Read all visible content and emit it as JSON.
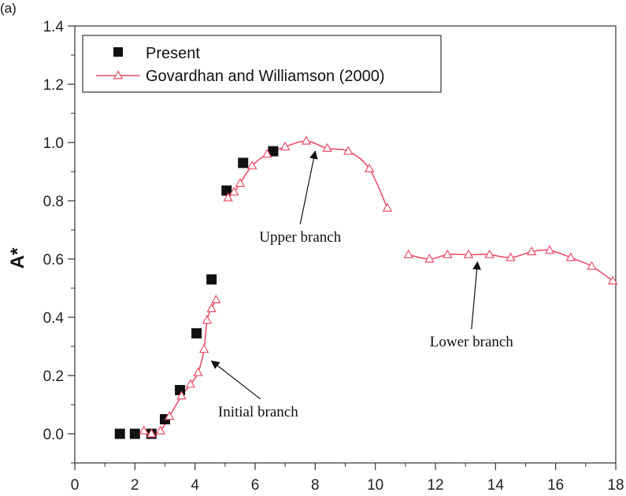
{
  "panel_label": "(a)",
  "chart_data": {
    "type": "scatter",
    "title": "",
    "xlabel": "",
    "ylabel": "A*",
    "xlim": [
      0,
      18
    ],
    "ylim": [
      -0.1,
      1.4
    ],
    "x_ticks": [
      0,
      2,
      4,
      6,
      8,
      10,
      12,
      14,
      16,
      18
    ],
    "y_ticks": [
      0.0,
      0.2,
      0.4,
      0.6,
      0.8,
      1.0,
      1.2,
      1.4
    ],
    "x_tick_labels": [
      "0",
      "2",
      "4",
      "6",
      "8",
      "10",
      "12",
      "14",
      "16",
      "18"
    ],
    "y_tick_labels": [
      "0.0",
      "0.2",
      "0.4",
      "0.6",
      "0.8",
      "1.0",
      "1.2",
      "1.4"
    ],
    "grid": false,
    "legend_position": "top-left",
    "series": [
      {
        "name": "Present",
        "style": "square-markers",
        "color": "#111111",
        "x": [
          1.5,
          2.0,
          2.55,
          3.0,
          3.5,
          4.05,
          4.55,
          5.05,
          5.6,
          6.6
        ],
        "y": [
          0.0,
          0.0,
          0.0,
          0.05,
          0.15,
          0.345,
          0.53,
          0.835,
          0.93,
          0.97
        ]
      },
      {
        "name": "Govardhan and Williamson (2000)",
        "style": "line-with-open-triangles",
        "color": "#e8506a",
        "segments": [
          {
            "x": [
              2.3,
              2.55,
              2.85,
              3.15,
              3.55,
              3.85,
              4.1,
              4.3,
              4.4,
              4.55,
              4.7
            ],
            "y": [
              0.01,
              0.0,
              0.01,
              0.06,
              0.13,
              0.17,
              0.21,
              0.29,
              0.39,
              0.43,
              0.46
            ]
          },
          {
            "x": [
              5.1,
              5.3,
              5.5,
              5.9,
              6.4,
              7.0,
              7.7,
              8.4,
              9.1,
              9.8,
              10.4
            ],
            "y": [
              0.81,
              0.83,
              0.86,
              0.92,
              0.96,
              0.985,
              1.005,
              0.98,
              0.97,
              0.91,
              0.775
            ]
          },
          {
            "x": [
              11.1,
              11.8,
              12.4,
              13.1,
              13.8,
              14.5,
              15.2,
              15.8,
              16.5,
              17.2,
              17.9
            ],
            "y": [
              0.615,
              0.6,
              0.615,
              0.615,
              0.615,
              0.605,
              0.625,
              0.63,
              0.605,
              0.575,
              0.525
            ]
          }
        ]
      }
    ],
    "annotations": [
      {
        "text": "Upper branch",
        "arrow_to": [
          8.0,
          0.97
        ],
        "text_at": [
          7.5,
          0.66
        ]
      },
      {
        "text": "Lower branch",
        "arrow_to": [
          13.4,
          0.59
        ],
        "text_at": [
          13.2,
          0.3
        ]
      },
      {
        "text": "Initial branch",
        "arrow_to": [
          4.55,
          0.25
        ],
        "text_at": [
          6.1,
          0.06
        ]
      }
    ]
  }
}
